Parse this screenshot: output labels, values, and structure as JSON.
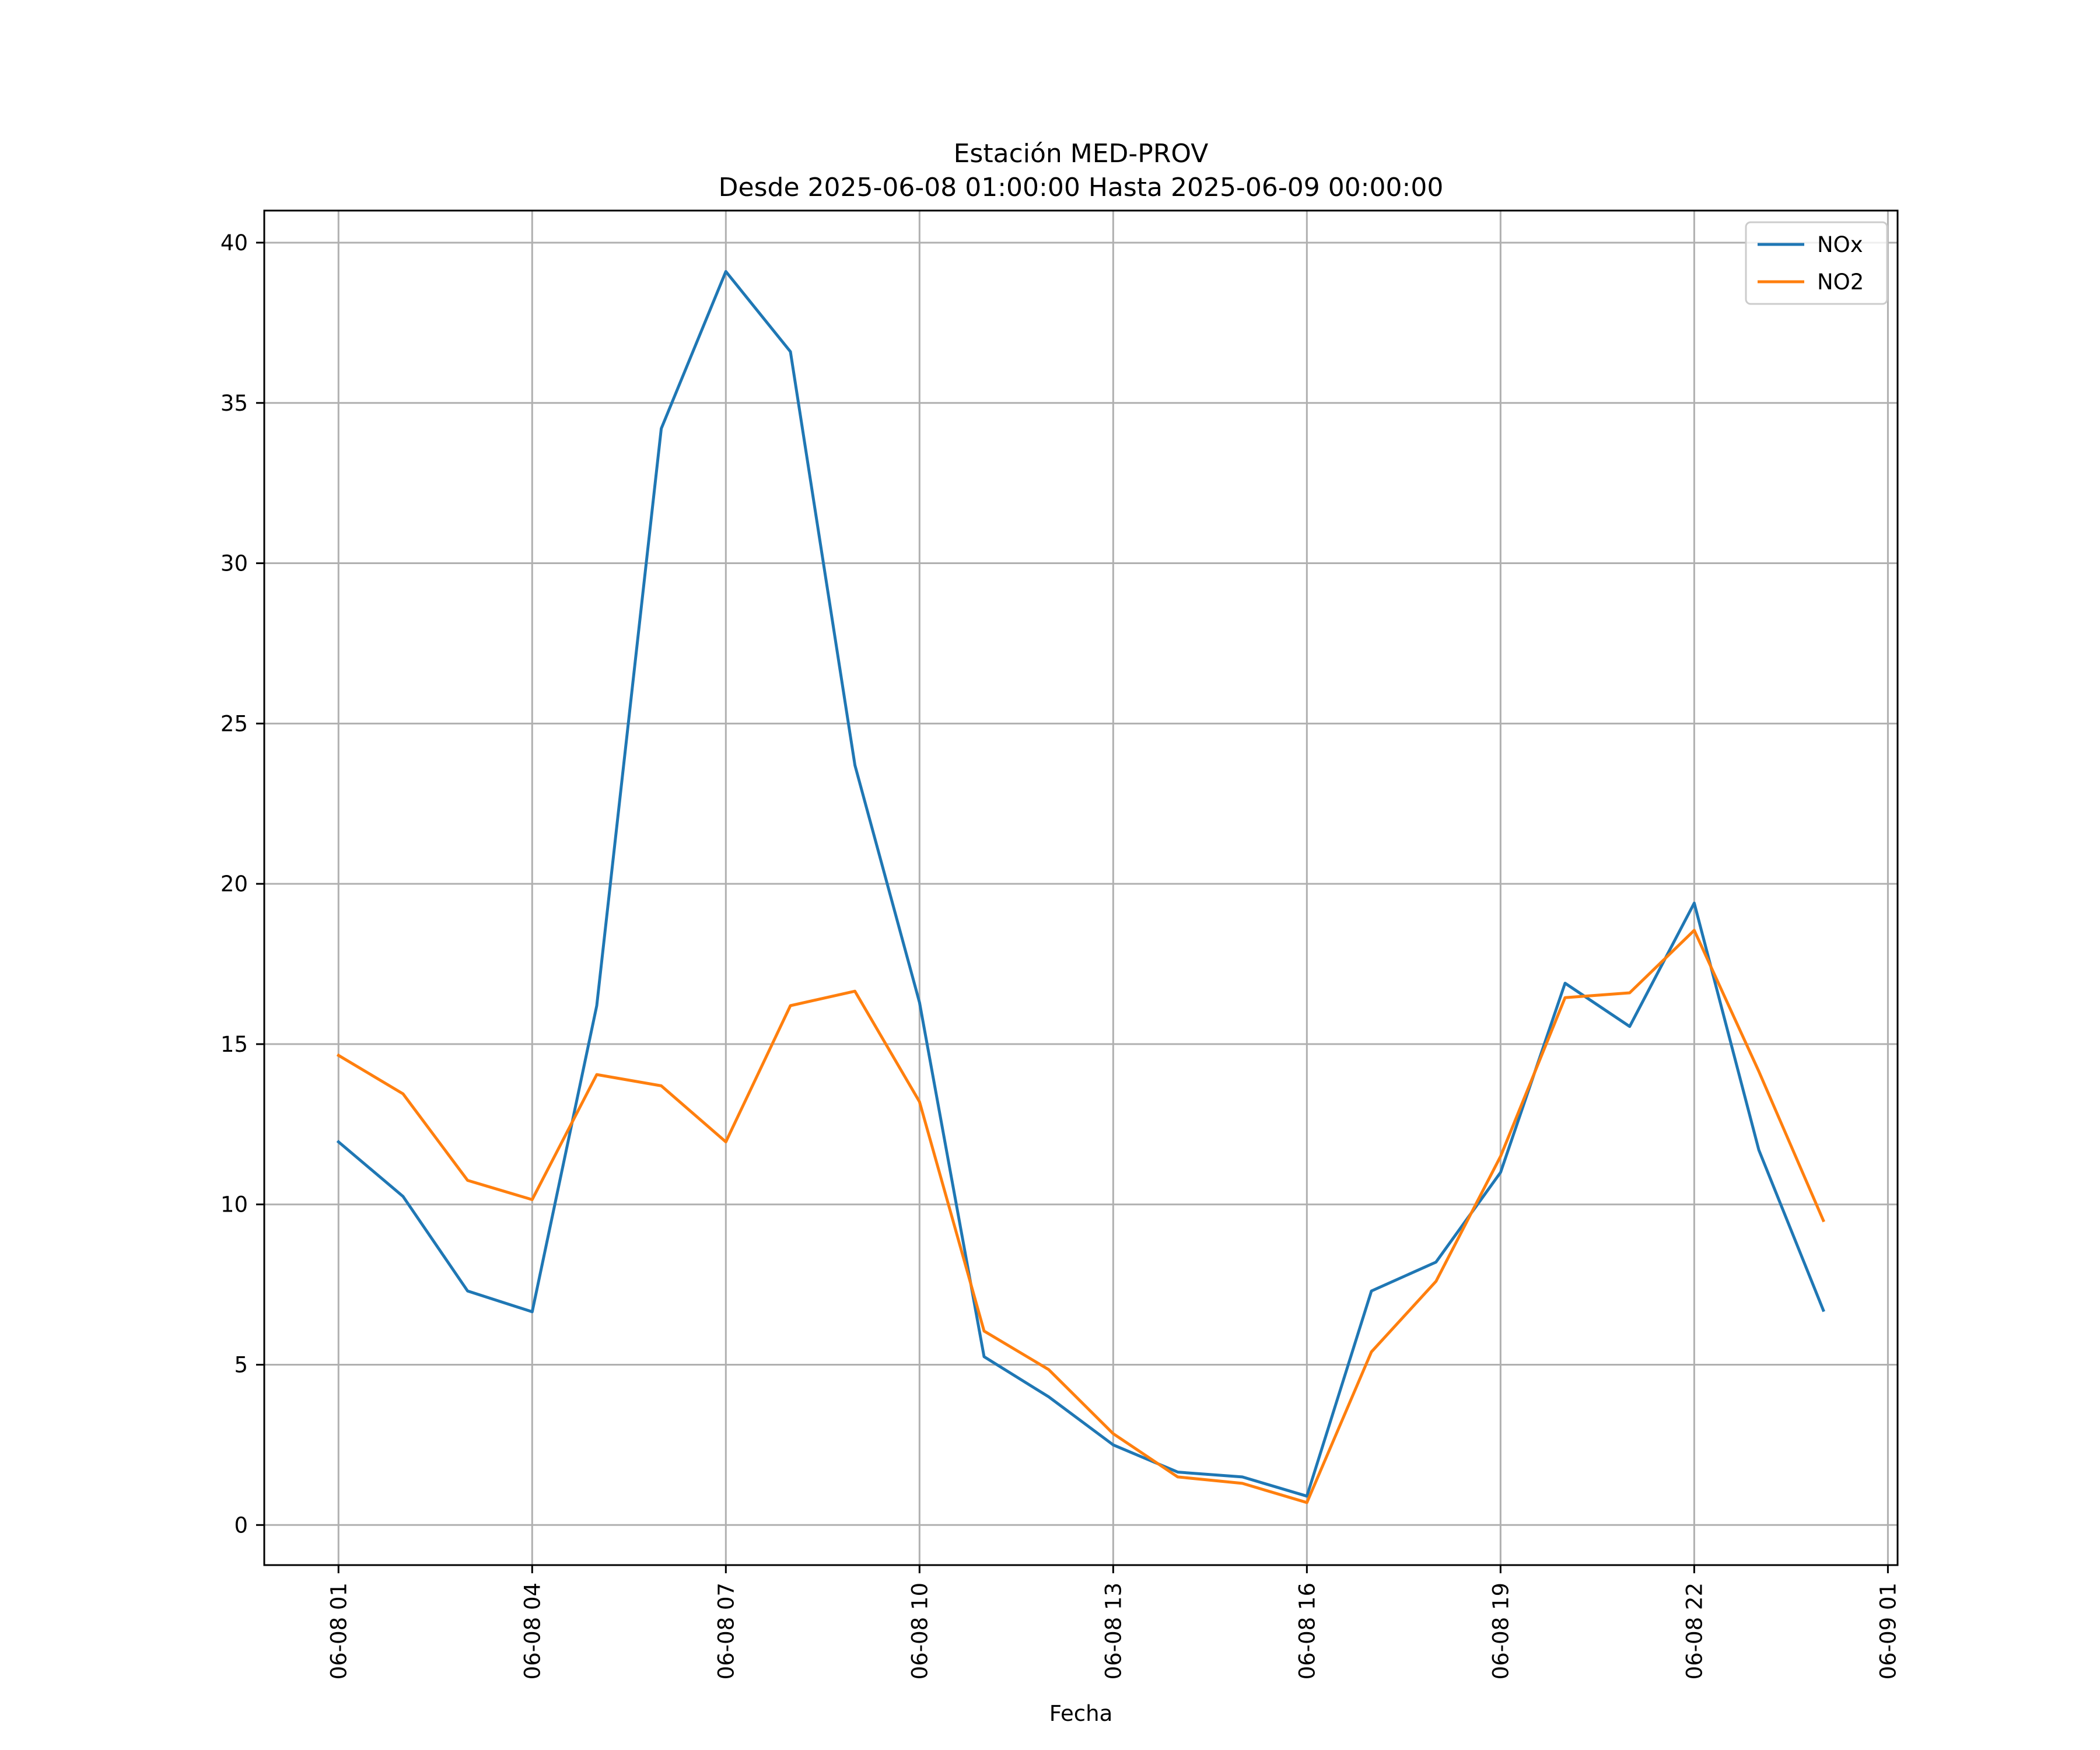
{
  "chart_data": {
    "type": "line",
    "title": "Estación MED-PROV",
    "subtitle": "Desde 2025-06-08 01:00:00 Hasta 2025-06-09 00:00:00",
    "xlabel": "Fecha",
    "ylabel": "",
    "x": [
      "2025-06-08 01:00",
      "2025-06-08 02:00",
      "2025-06-08 03:00",
      "2025-06-08 04:00",
      "2025-06-08 05:00",
      "2025-06-08 06:00",
      "2025-06-08 07:00",
      "2025-06-08 08:00",
      "2025-06-08 09:00",
      "2025-06-08 10:00",
      "2025-06-08 11:00",
      "2025-06-08 12:00",
      "2025-06-08 13:00",
      "2025-06-08 14:00",
      "2025-06-08 15:00",
      "2025-06-08 16:00",
      "2025-06-08 17:00",
      "2025-06-08 18:00",
      "2025-06-08 19:00",
      "2025-06-08 20:00",
      "2025-06-08 21:00",
      "2025-06-08 22:00",
      "2025-06-08 23:00",
      "2025-06-09 00:00"
    ],
    "x_ticks": [
      {
        "at": "2025-06-08 01:00",
        "label": "06-08 01"
      },
      {
        "at": "2025-06-08 04:00",
        "label": "06-08 04"
      },
      {
        "at": "2025-06-08 07:00",
        "label": "06-08 07"
      },
      {
        "at": "2025-06-08 10:00",
        "label": "06-08 10"
      },
      {
        "at": "2025-06-08 13:00",
        "label": "06-08 13"
      },
      {
        "at": "2025-06-08 16:00",
        "label": "06-08 16"
      },
      {
        "at": "2025-06-08 19:00",
        "label": "06-08 19"
      },
      {
        "at": "2025-06-08 22:00",
        "label": "06-08 22"
      },
      {
        "at": "2025-06-09 01:00",
        "label": "06-09 01"
      }
    ],
    "xlim": [
      "2025-06-07 23:51",
      "2025-06-09 01:09"
    ],
    "y_ticks": [
      0,
      5,
      10,
      15,
      20,
      25,
      30,
      35,
      40
    ],
    "ylim": [
      -1.25,
      41
    ],
    "grid": true,
    "legend": "upper right",
    "series": [
      {
        "name": "NOx",
        "color": "#1f77b4",
        "values": [
          11.95,
          10.25,
          7.3,
          6.65,
          16.2,
          34.2,
          39.1,
          36.6,
          23.7,
          16.3,
          5.25,
          4.0,
          2.5,
          1.65,
          1.5,
          0.9,
          7.3,
          8.2,
          11.0,
          16.9,
          15.55,
          19.4,
          11.7,
          6.7
        ]
      },
      {
        "name": "NO2",
        "color": "#ff7f0e",
        "values": [
          14.65,
          13.45,
          10.75,
          10.15,
          14.05,
          13.7,
          11.95,
          16.2,
          16.65,
          13.2,
          6.05,
          4.85,
          2.85,
          1.5,
          1.3,
          0.7,
          5.4,
          7.6,
          11.5,
          16.45,
          16.6,
          18.55,
          14.15,
          9.5
        ]
      }
    ]
  }
}
